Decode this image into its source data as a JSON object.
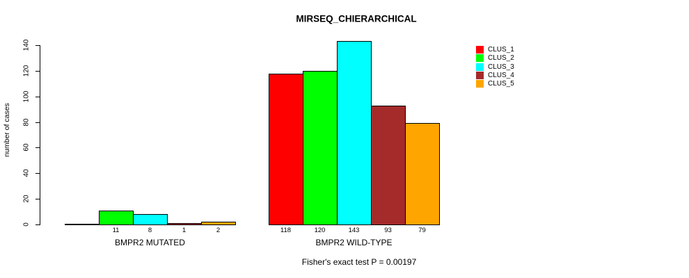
{
  "chart_data": {
    "type": "bar",
    "title": "MIRSEQ_CHIERARCHICAL",
    "ylabel": "number of cases",
    "xlabel": "",
    "ylim": [
      0,
      140
    ],
    "yticks": [
      0,
      20,
      40,
      60,
      80,
      100,
      120,
      140
    ],
    "grid": false,
    "legend_position": "right",
    "categories": [
      "BMPR2 MUTATED",
      "BMPR2 WILD-TYPE"
    ],
    "series": [
      {
        "name": "CLUS_1",
        "color": "#FF0000",
        "values": [
          0,
          118
        ]
      },
      {
        "name": "CLUS_2",
        "color": "#00FF00",
        "values": [
          11,
          120
        ]
      },
      {
        "name": "CLUS_3",
        "color": "#00FFFF",
        "values": [
          8,
          143
        ]
      },
      {
        "name": "CLUS_4",
        "color": "#A52A2A",
        "values": [
          1,
          93
        ]
      },
      {
        "name": "CLUS_5",
        "color": "#FFA500",
        "values": [
          2,
          79
        ]
      }
    ],
    "bar_value_labels": [
      [
        "",
        "11",
        "8",
        "1",
        "2"
      ],
      [
        "118",
        "120",
        "143",
        "93",
        "79"
      ]
    ],
    "annotation": "Fisher's exact test P = 0.00197",
    "axis_color": "#000000",
    "bar_border_color": "#000000"
  }
}
